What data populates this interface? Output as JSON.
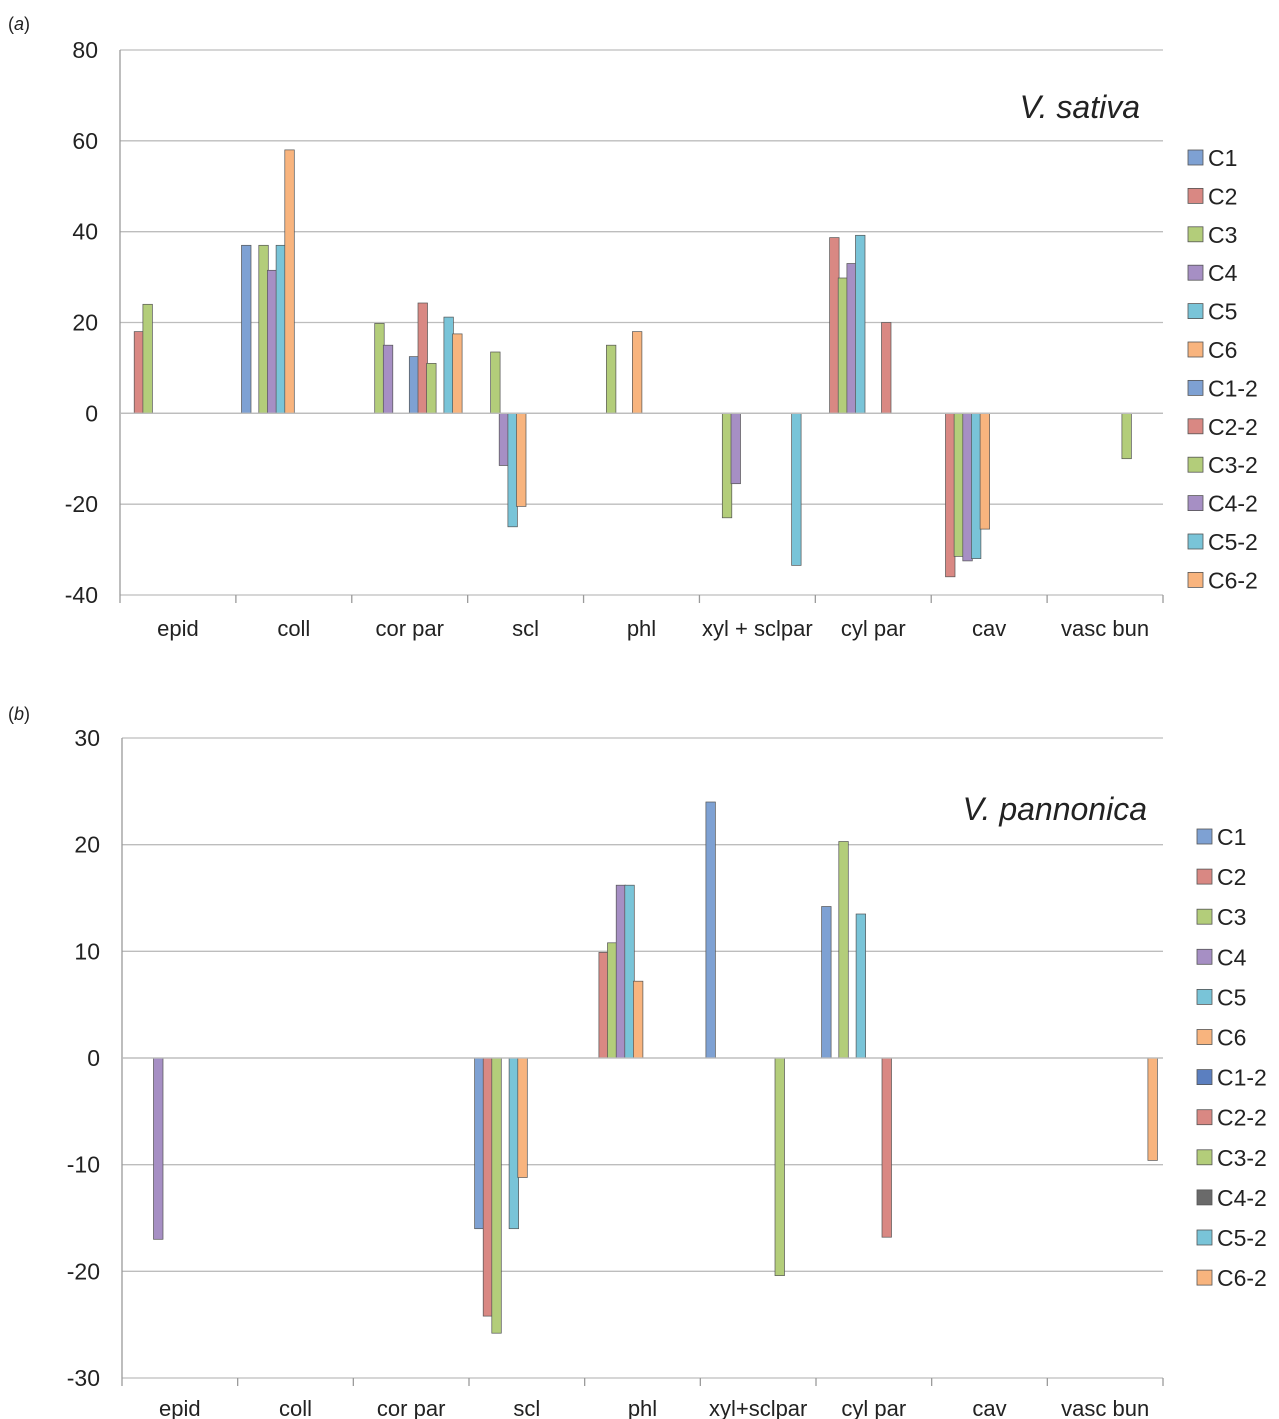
{
  "chart_data": [
    {
      "panel_label": "(a)",
      "type": "bar",
      "title": "V. sativa",
      "xlabel": "",
      "ylabel": "",
      "ylim": [
        -40,
        80
      ],
      "yticks": [
        80,
        60,
        40,
        20,
        0,
        -20,
        -40
      ],
      "grid": true,
      "legend_position": "right",
      "categories": [
        "epid",
        "coll",
        "cor par",
        "scl",
        "phl",
        "xyl + sclpar",
        "cyl par",
        "cav",
        "vasc bun"
      ],
      "series": [
        {
          "name": "C1",
          "color": "#7ea1d3",
          "values": [
            0,
            37,
            0,
            0,
            0,
            0,
            0,
            0,
            0
          ]
        },
        {
          "name": "C2",
          "color": "#d98883",
          "values": [
            18,
            0,
            0,
            0,
            0,
            0,
            38.7,
            -36,
            0
          ]
        },
        {
          "name": "C3",
          "color": "#b3cd7a",
          "values": [
            24,
            37,
            19.8,
            13.5,
            15,
            -23,
            29.8,
            -31.5,
            0
          ]
        },
        {
          "name": "C4",
          "color": "#a68fc4",
          "values": [
            0,
            31.5,
            15,
            -11.5,
            0,
            -15.5,
            33,
            -32.5,
            0
          ]
        },
        {
          "name": "C5",
          "color": "#79c4d8",
          "values": [
            0,
            37,
            0,
            -25,
            0,
            0,
            39.2,
            -32,
            0
          ]
        },
        {
          "name": "C6",
          "color": "#f8b47e",
          "values": [
            0,
            58,
            0,
            -20.5,
            18,
            0,
            0,
            -25.5,
            0
          ]
        },
        {
          "name": "C1-2",
          "color": "#7ea1d3",
          "values": [
            0,
            0,
            12.5,
            0,
            0,
            0,
            0,
            0,
            0
          ]
        },
        {
          "name": "C2-2",
          "color": "#d98883",
          "values": [
            0,
            0,
            24.3,
            0,
            0,
            0,
            20,
            0,
            0
          ]
        },
        {
          "name": "C3-2",
          "color": "#b3cd7a",
          "values": [
            0,
            0,
            11,
            0,
            0,
            0,
            0,
            0,
            -10
          ]
        },
        {
          "name": "C4-2",
          "color": "#a68fc4",
          "values": [
            0,
            0,
            0,
            0,
            0,
            0,
            0,
            0,
            0
          ]
        },
        {
          "name": "C5-2",
          "color": "#79c4d8",
          "values": [
            0,
            0,
            21.2,
            0,
            0,
            -33.5,
            0,
            0,
            0
          ]
        },
        {
          "name": "C6-2",
          "color": "#f8b47e",
          "values": [
            0,
            0,
            17.5,
            0,
            0,
            0,
            0,
            0,
            0
          ]
        }
      ]
    },
    {
      "panel_label": "(b)",
      "type": "bar",
      "title": "V. pannonica",
      "xlabel": "",
      "ylabel": "",
      "ylim": [
        -30,
        30
      ],
      "yticks": [
        30,
        20,
        10,
        0,
        -10,
        -20,
        -30
      ],
      "grid": true,
      "legend_position": "right",
      "categories": [
        "epid",
        "coll",
        "cor par",
        "scl",
        "phl",
        "xyl+sclpar",
        "cyl par",
        "cav",
        "vasc bun"
      ],
      "series": [
        {
          "name": "C1",
          "color": "#7ea1d3",
          "values": [
            0,
            0,
            0,
            -16,
            0,
            24,
            14.2,
            0,
            0
          ]
        },
        {
          "name": "C2",
          "color": "#d98883",
          "values": [
            0,
            0,
            0,
            -24.2,
            9.9,
            0,
            0,
            0,
            0
          ]
        },
        {
          "name": "C3",
          "color": "#b3cd7a",
          "values": [
            0,
            0,
            0,
            -25.8,
            10.8,
            0,
            20.3,
            0,
            0
          ]
        },
        {
          "name": "C4",
          "color": "#a68fc4",
          "values": [
            -17,
            0,
            0,
            0,
            16.2,
            0,
            0,
            0,
            0
          ]
        },
        {
          "name": "C5",
          "color": "#79c4d8",
          "values": [
            0,
            0,
            0,
            -16,
            16.2,
            0,
            13.5,
            0,
            0
          ]
        },
        {
          "name": "C6",
          "color": "#f8b47e",
          "values": [
            0,
            0,
            0,
            -11.2,
            7.2,
            0,
            0,
            0,
            0
          ]
        },
        {
          "name": "C1-2",
          "color": "#5b7fc0",
          "values": [
            0,
            0,
            0,
            0,
            0,
            0,
            0,
            0,
            0
          ]
        },
        {
          "name": "C2-2",
          "color": "#d98883",
          "values": [
            0,
            0,
            0,
            0,
            0,
            0,
            -16.8,
            0,
            0
          ]
        },
        {
          "name": "C3-2",
          "color": "#b3cd7a",
          "values": [
            0,
            0,
            0,
            0,
            0,
            -20.4,
            0,
            0,
            0
          ]
        },
        {
          "name": "C4-2",
          "color": "#6a6a6a",
          "values": [
            0,
            0,
            0,
            0,
            0,
            0,
            0,
            0,
            0
          ]
        },
        {
          "name": "C5-2",
          "color": "#79c4d8",
          "values": [
            0,
            0,
            0,
            0,
            0,
            0,
            0,
            0,
            0
          ]
        },
        {
          "name": "C6-2",
          "color": "#f8b47e",
          "values": [
            0,
            0,
            0,
            0,
            0,
            0,
            0,
            0,
            -9.6
          ]
        }
      ]
    }
  ]
}
